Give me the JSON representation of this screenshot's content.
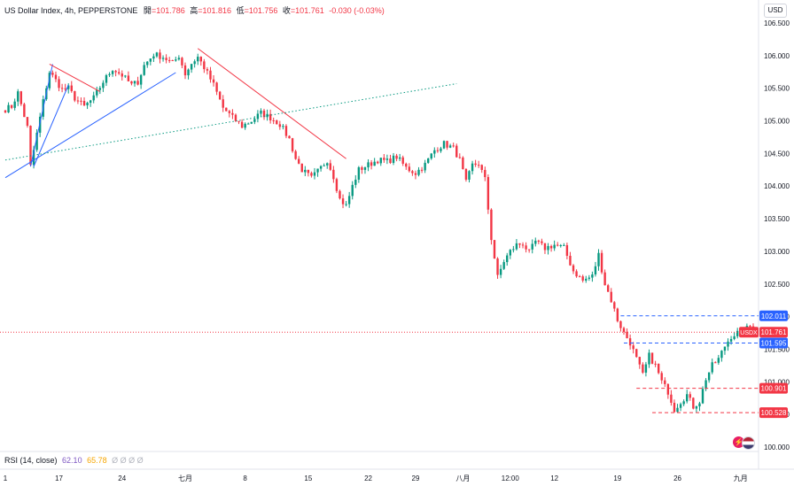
{
  "header": {
    "symbol": "US Dollar Index, 4h, PEPPERSTONE",
    "open_label": "開",
    "open": "=101.786",
    "high_label": "高",
    "high": "=101.816",
    "low_label": "低",
    "low": "=101.756",
    "close_label": "收",
    "close": "=101.761",
    "change": "-0.030 (-0.03%)"
  },
  "currency": "USD",
  "rsi": {
    "label": "RSI (14, close)",
    "v1": "62.10",
    "v2": "65.78",
    "v3": "Ø Ø Ø Ø"
  },
  "colors": {
    "up": "#089981",
    "down": "#f23645",
    "trend_blue": "#2962ff",
    "trend_red": "#f23645",
    "trend_green": "#089981",
    "level_blue": "#2962ff"
  },
  "chart_data": {
    "type": "candlestick",
    "y_axis": {
      "min": 100.0,
      "max": 106.5,
      "ticks": [
        {
          "v": 100.0,
          "t": "100.000"
        },
        {
          "v": 100.5,
          "t": "100.500"
        },
        {
          "v": 101.0,
          "t": "101.000"
        },
        {
          "v": 101.5,
          "t": "101.500"
        },
        {
          "v": 102.0,
          "t": "102.000"
        },
        {
          "v": 102.5,
          "t": "102.500"
        },
        {
          "v": 103.0,
          "t": "103.000"
        },
        {
          "v": 103.5,
          "t": "103.500"
        },
        {
          "v": 104.0,
          "t": "104.000"
        },
        {
          "v": 104.5,
          "t": "104.500"
        },
        {
          "v": 105.0,
          "t": "105.000"
        },
        {
          "v": 105.5,
          "t": "105.500"
        },
        {
          "v": 106.0,
          "t": "106.000"
        },
        {
          "v": 106.5,
          "t": "106.500"
        }
      ]
    },
    "x_axis": {
      "labels": [
        {
          "i": 0,
          "t": "1"
        },
        {
          "i": 17,
          "t": "17"
        },
        {
          "i": 37,
          "t": "24"
        },
        {
          "i": 57,
          "t": "七月"
        },
        {
          "i": 76,
          "t": "8"
        },
        {
          "i": 96,
          "t": "15"
        },
        {
          "i": 115,
          "t": "22"
        },
        {
          "i": 130,
          "t": "29"
        },
        {
          "i": 145,
          "t": "八月"
        },
        {
          "i": 160,
          "t": "12:00"
        },
        {
          "i": 174,
          "t": "12"
        },
        {
          "i": 194,
          "t": "19"
        },
        {
          "i": 213,
          "t": "26"
        },
        {
          "i": 233,
          "t": "九月"
        }
      ]
    },
    "price_line": {
      "value": 101.761,
      "label": "USDX",
      "text": "101.761"
    },
    "levels": [
      {
        "value": 102.011,
        "text": "102.011",
        "color": "#2962ff",
        "from": 195
      },
      {
        "value": 101.595,
        "text": "101.595",
        "color": "#2962ff",
        "from": 196
      },
      {
        "value": 100.901,
        "text": "100.901",
        "color": "#f23645",
        "from": 200
      },
      {
        "value": 100.528,
        "text": "100.528",
        "color": "#f23645",
        "from": 205
      }
    ],
    "trendlines": [
      {
        "color": "#2962ff",
        "style": "solid",
        "p1": [
          0,
          104.13
        ],
        "p2": [
          54,
          105.74
        ]
      },
      {
        "color": "#2962ff",
        "style": "solid",
        "p1": [
          8,
          104.3
        ],
        "p2": [
          15,
          105.87
        ]
      },
      {
        "color": "#2962ff",
        "style": "solid",
        "p1": [
          9,
          104.3
        ],
        "p2": [
          20,
          105.55
        ]
      },
      {
        "color": "#f23645",
        "style": "solid",
        "p1": [
          14,
          105.87
        ],
        "p2": [
          30,
          105.45
        ]
      },
      {
        "color": "#f23645",
        "style": "solid",
        "p1": [
          61,
          106.11
        ],
        "p2": [
          108,
          104.42
        ]
      },
      {
        "color": "#089981",
        "style": "dotted",
        "p1": [
          0,
          104.4
        ],
        "p2": [
          143,
          105.57
        ]
      }
    ],
    "anchors": [
      [
        0,
        105.18
      ],
      [
        2,
        105.22
      ],
      [
        4,
        105.43
      ],
      [
        7,
        104.9
      ],
      [
        8,
        104.3
      ],
      [
        10,
        104.8
      ],
      [
        12,
        105.3
      ],
      [
        14,
        105.75
      ],
      [
        16,
        105.62
      ],
      [
        18,
        105.48
      ],
      [
        20,
        105.5
      ],
      [
        22,
        105.35
      ],
      [
        25,
        105.22
      ],
      [
        28,
        105.35
      ],
      [
        31,
        105.6
      ],
      [
        34,
        105.8
      ],
      [
        37,
        105.7
      ],
      [
        40,
        105.55
      ],
      [
        42,
        105.6
      ],
      [
        44,
        105.85
      ],
      [
        47,
        106.02
      ],
      [
        50,
        105.98
      ],
      [
        53,
        105.88
      ],
      [
        55,
        106.0
      ],
      [
        57,
        105.72
      ],
      [
        59,
        105.88
      ],
      [
        61,
        105.98
      ],
      [
        63,
        105.82
      ],
      [
        66,
        105.55
      ],
      [
        69,
        105.2
      ],
      [
        72,
        105.05
      ],
      [
        75,
        104.92
      ],
      [
        78,
        105.0
      ],
      [
        81,
        105.12
      ],
      [
        84,
        105.05
      ],
      [
        87,
        104.95
      ],
      [
        90,
        104.72
      ],
      [
        92,
        104.42
      ],
      [
        94,
        104.25
      ],
      [
        97,
        104.12
      ],
      [
        100,
        104.28
      ],
      [
        102,
        104.4
      ],
      [
        104,
        104.15
      ],
      [
        106,
        103.8
      ],
      [
        108,
        103.7
      ],
      [
        110,
        104.0
      ],
      [
        112,
        104.25
      ],
      [
        114,
        104.3
      ],
      [
        116,
        104.35
      ],
      [
        118,
        104.4
      ],
      [
        121,
        104.38
      ],
      [
        124,
        104.45
      ],
      [
        127,
        104.28
      ],
      [
        130,
        104.2
      ],
      [
        133,
        104.33
      ],
      [
        136,
        104.55
      ],
      [
        139,
        104.65
      ],
      [
        142,
        104.58
      ],
      [
        144,
        104.4
      ],
      [
        146,
        104.05
      ],
      [
        148,
        104.32
      ],
      [
        150,
        104.35
      ],
      [
        152,
        104.1
      ],
      [
        154,
        103.2
      ],
      [
        156,
        102.6
      ],
      [
        158,
        102.85
      ],
      [
        160,
        103.0
      ],
      [
        162,
        103.1
      ],
      [
        164,
        103.12
      ],
      [
        166,
        102.98
      ],
      [
        168,
        103.15
      ],
      [
        171,
        103.05
      ],
      [
        174,
        103.1
      ],
      [
        177,
        103.05
      ],
      [
        180,
        102.7
      ],
      [
        183,
        102.55
      ],
      [
        186,
        102.62
      ],
      [
        188,
        102.95
      ],
      [
        190,
        102.5
      ],
      [
        192,
        102.25
      ],
      [
        194,
        101.95
      ],
      [
        196,
        101.75
      ],
      [
        198,
        101.6
      ],
      [
        200,
        101.35
      ],
      [
        202,
        101.1
      ],
      [
        204,
        101.4
      ],
      [
        206,
        101.25
      ],
      [
        208,
        101.0
      ],
      [
        210,
        100.85
      ],
      [
        212,
        100.58
      ],
      [
        214,
        100.7
      ],
      [
        216,
        100.8
      ],
      [
        218,
        100.62
      ],
      [
        220,
        100.7
      ],
      [
        222,
        101.05
      ],
      [
        224,
        101.25
      ],
      [
        226,
        101.35
      ],
      [
        228,
        101.55
      ],
      [
        230,
        101.7
      ],
      [
        232,
        101.75
      ],
      [
        234,
        101.78
      ],
      [
        236,
        101.85
      ],
      [
        237,
        101.761
      ]
    ],
    "count": 238
  }
}
